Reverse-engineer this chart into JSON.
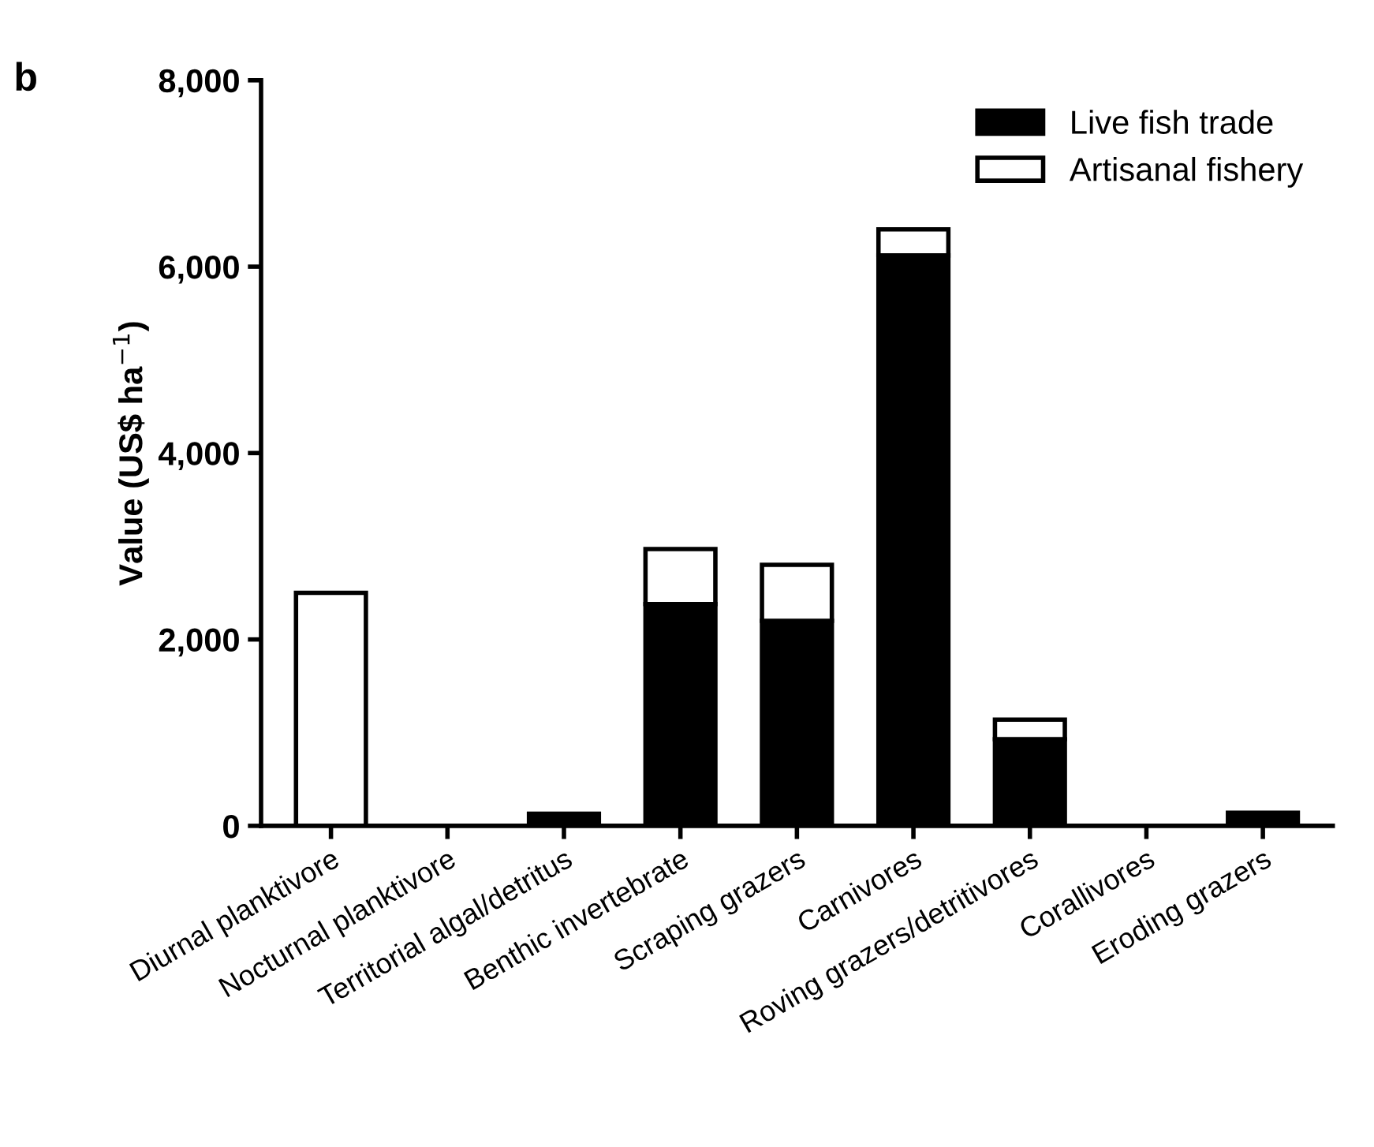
{
  "chart_data": {
    "type": "bar",
    "stacked": true,
    "ylabel": "Value (US$ ha$^{−1}$)",
    "annotations": [
      "b"
    ],
    "categories": [
      "Diurnal planktivore",
      "Nocturnal planktivore",
      "Territorial algal/detritus",
      "Benthic invertebrate",
      "Scraping grazers",
      "Carnivores",
      "Roving grazers/detritivores",
      "Corallivores",
      "Eroding grazers"
    ],
    "series": [
      {
        "name": "Live fish trade",
        "color": "#000000",
        "values": [
          0,
          0,
          130,
          2380,
          2200,
          6120,
          930,
          0,
          140
        ]
      },
      {
        "name": "Artisanal fishery",
        "color": "#ffffff",
        "values": [
          2500,
          0,
          0,
          590,
          600,
          280,
          210,
          0,
          0
        ]
      }
    ],
    "ylim": [
      0,
      8000
    ],
    "yticks": [
      {
        "value": 0,
        "label": "0"
      },
      {
        "value": 2000,
        "label": "2,000"
      },
      {
        "value": 4000,
        "label": "4,000"
      },
      {
        "value": 6000,
        "label": "6,000"
      },
      {
        "value": 8000,
        "label": "8,000"
      }
    ],
    "legend": "top right",
    "grid": false
  }
}
